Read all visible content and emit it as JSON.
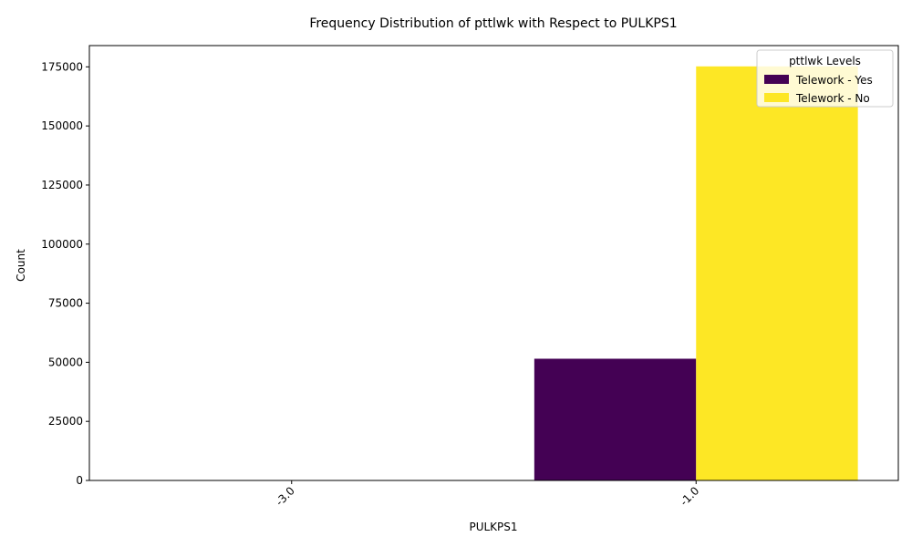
{
  "chart_data": {
    "type": "bar",
    "title": "Frequency Distribution of pttlwk with Respect to PULKPS1",
    "xlabel": "PULKPS1",
    "ylabel": "Count",
    "categories": [
      "-3.0",
      "-1.0"
    ],
    "series": [
      {
        "name": "Telework - Yes",
        "values": [
          0,
          51500
        ],
        "color": "#440154"
      },
      {
        "name": "Telework - No",
        "values": [
          0,
          175200
        ],
        "color": "#fde725"
      }
    ],
    "ylim": [
      0,
      184000
    ],
    "yticks": [
      0,
      25000,
      50000,
      75000,
      100000,
      125000,
      150000,
      175000
    ],
    "legend": {
      "title": "pttlwk Levels",
      "position": "top-right"
    },
    "grid": false
  }
}
